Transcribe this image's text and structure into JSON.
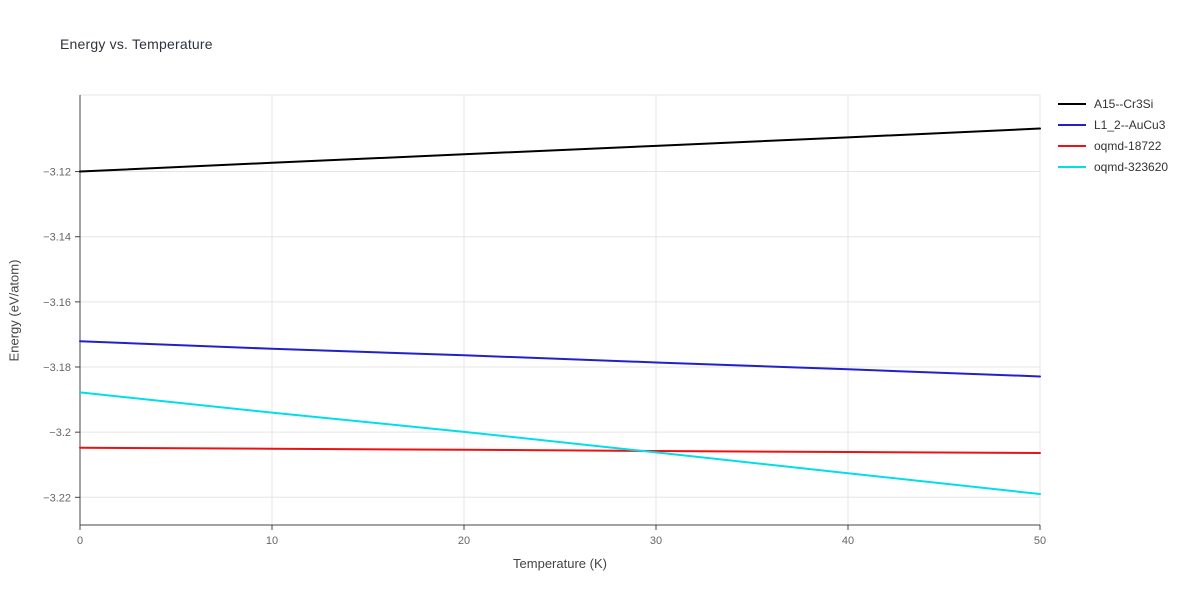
{
  "chart_data": {
    "type": "line",
    "title": "Energy vs. Temperature",
    "xlabel": "Temperature (K)",
    "ylabel": "Energy (eV/atom)",
    "xlim": [
      0,
      50
    ],
    "ylim": [
      -3.2285,
      -3.0965
    ],
    "grid": true,
    "legend_position": "top-right-outside",
    "colors": {
      "grid": "#e5e5e5",
      "outline": "#e5e5e5",
      "axis": "#444444",
      "tick_label": "#666666",
      "title": "#2f3240"
    },
    "xticks": [
      {
        "v": 0,
        "label": "0"
      },
      {
        "v": 10,
        "label": "10"
      },
      {
        "v": 20,
        "label": "20"
      },
      {
        "v": 30,
        "label": "30"
      },
      {
        "v": 40,
        "label": "40"
      },
      {
        "v": 50,
        "label": "50"
      }
    ],
    "yticks": [
      {
        "v": -3.12,
        "label": "−3.12"
      },
      {
        "v": -3.14,
        "label": "−3.14"
      },
      {
        "v": -3.16,
        "label": "−3.16"
      },
      {
        "v": -3.18,
        "label": "−3.18"
      },
      {
        "v": -3.2,
        "label": "−3.2"
      },
      {
        "v": -3.22,
        "label": "−3.22"
      }
    ],
    "x": [
      0,
      10,
      20,
      30,
      40,
      50
    ],
    "series": [
      {
        "name": "A15--Cr3Si",
        "color": "#000000",
        "values": [
          -3.12,
          -3.1173,
          -3.1147,
          -3.1121,
          -3.1095,
          -3.1068
        ]
      },
      {
        "name": "L1_2--AuCu3",
        "color": "#2121cc",
        "values": [
          -3.1721,
          -3.1744,
          -3.1764,
          -3.1786,
          -3.1807,
          -3.1829
        ]
      },
      {
        "name": "oqmd-18722",
        "color": "#ee1111",
        "values": [
          -3.2048,
          -3.2051,
          -3.2054,
          -3.2058,
          -3.2061,
          -3.2064
        ]
      },
      {
        "name": "oqmd-323620",
        "color": "#00dfe8",
        "values": [
          -3.1878,
          -3.194,
          -3.1999,
          -3.2062,
          -3.2126,
          -3.219
        ]
      }
    ]
  }
}
